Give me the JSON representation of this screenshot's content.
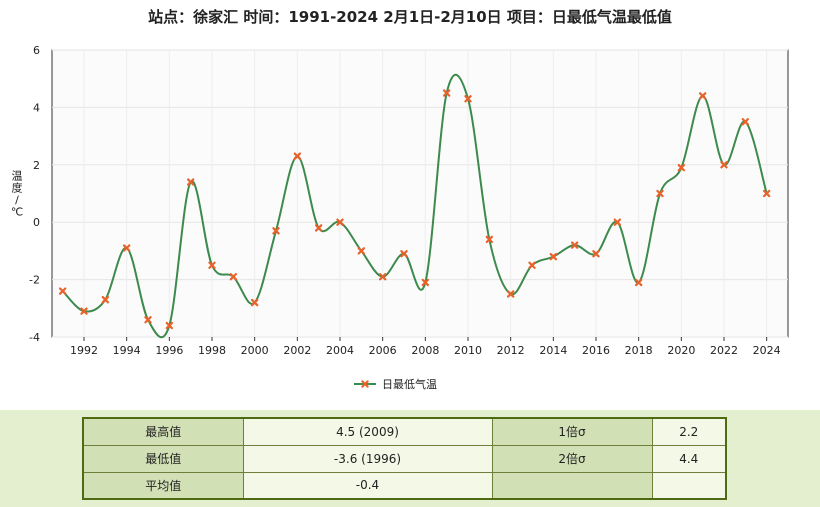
{
  "title": "站点：徐家汇 时间：1991-2024  2月1日-2月10日 项目：日最低气温最低值",
  "chart_data": {
    "type": "line",
    "x": [
      1991,
      1992,
      1993,
      1994,
      1995,
      1996,
      1997,
      1998,
      1999,
      2000,
      2001,
      2002,
      2003,
      2004,
      2005,
      2006,
      2007,
      2008,
      2009,
      2010,
      2011,
      2012,
      2013,
      2014,
      2015,
      2016,
      2017,
      2018,
      2019,
      2020,
      2021,
      2022,
      2023,
      2024
    ],
    "series": [
      {
        "name": "日最低气温",
        "values": [
          -2.4,
          -3.1,
          -2.7,
          -0.9,
          -3.4,
          -3.6,
          1.4,
          -1.5,
          -1.9,
          -2.8,
          -0.3,
          2.3,
          -0.2,
          0.0,
          -1.0,
          -1.9,
          -1.1,
          -2.1,
          4.5,
          4.3,
          -0.6,
          -2.5,
          -1.5,
          -1.2,
          -0.8,
          -1.1,
          0.0,
          -2.1,
          1.0,
          1.9,
          4.4,
          2.0,
          3.5,
          1.0
        ],
        "color": "#3d8a4d",
        "marker_color": "#e8622a"
      }
    ],
    "xticks": [
      1992,
      1994,
      1996,
      1998,
      2000,
      2002,
      2004,
      2006,
      2008,
      2010,
      2012,
      2014,
      2016,
      2018,
      2020,
      2022,
      2024
    ],
    "yticks": [
      -4,
      -2,
      0,
      2,
      4,
      6
    ],
    "ylim": [
      -4,
      6
    ],
    "xlim": [
      1990.5,
      2025
    ],
    "ylabel": "温度/℃",
    "legend_position": "bottom-center",
    "grid": true
  },
  "stats": {
    "rows": [
      {
        "label1": "最高值",
        "value1": "4.5 (2009)",
        "label2": "1倍σ",
        "value2": "2.2"
      },
      {
        "label1": "最低值",
        "value1": "-3.6 (1996)",
        "label2": "2倍σ",
        "value2": "4.4"
      },
      {
        "label1": "平均值",
        "value1": "-0.4",
        "label2": "",
        "value2": ""
      }
    ]
  }
}
